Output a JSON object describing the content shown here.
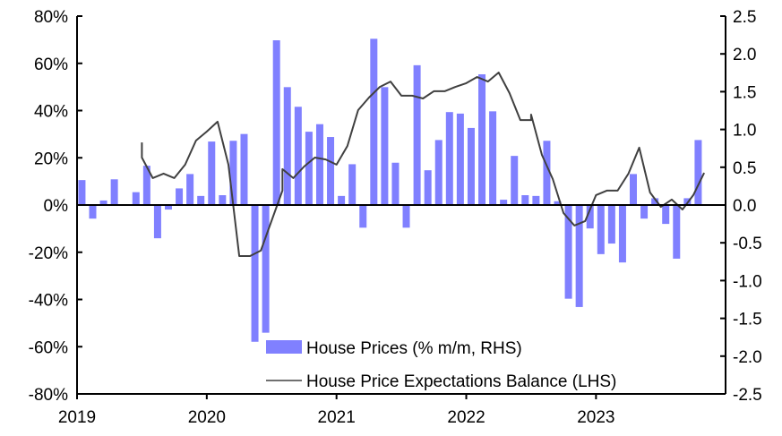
{
  "chart_data": {
    "type": "bar+line",
    "title": "",
    "x_start": "2019-01",
    "x_tick_labels": [
      "2019",
      "2020",
      "2021",
      "2022",
      "2023"
    ],
    "left_axis": {
      "label": "",
      "ylim": [
        -80,
        80
      ],
      "ticks": [
        80,
        60,
        40,
        20,
        0,
        -20,
        -40,
        -60,
        -80
      ],
      "tick_labels": [
        "80%",
        "60%",
        "40%",
        "20%",
        "0%",
        "-20%",
        "-40%",
        "-60%",
        "-80%"
      ]
    },
    "right_axis": {
      "label": "",
      "ylim": [
        -2.5,
        2.5
      ],
      "ticks": [
        2.5,
        2.0,
        1.5,
        1.0,
        0.5,
        0.0,
        -0.5,
        -1.0,
        -1.5,
        -2.0,
        -2.5
      ],
      "tick_labels": [
        "2.5",
        "2.0",
        "1.5",
        "1.0",
        "0.5",
        "0.0",
        "-0.5",
        "-1.0",
        "-1.5",
        "-2.0",
        "-2.5"
      ]
    },
    "legend_position": "bottom-center",
    "series": [
      {
        "name": "House Prices (% m/m, RHS)",
        "type": "bar",
        "axis": "right",
        "color": "#8080FF",
        "months": [
          "2019-01",
          "2019-02",
          "2019-03",
          "2019-04",
          "2019-05",
          "2019-06",
          "2019-07",
          "2019-08",
          "2019-09",
          "2019-10",
          "2019-11",
          "2019-12",
          "2020-01",
          "2020-02",
          "2020-03",
          "2020-04",
          "2020-05",
          "2020-06",
          "2020-07",
          "2020-08",
          "2020-09",
          "2020-10",
          "2020-11",
          "2020-12",
          "2021-01",
          "2021-02",
          "2021-03",
          "2021-04",
          "2021-05",
          "2021-06",
          "2021-07",
          "2021-08",
          "2021-09",
          "2021-10",
          "2021-11",
          "2021-12",
          "2022-01",
          "2022-02",
          "2022-03",
          "2022-04",
          "2022-05",
          "2022-06",
          "2022-07",
          "2022-08",
          "2022-09",
          "2022-10",
          "2022-11",
          "2022-12",
          "2023-01",
          "2023-02",
          "2023-03",
          "2023-04",
          "2023-05",
          "2023-06",
          "2023-07",
          "2023-08",
          "2023-09",
          "2023-10"
        ],
        "values": [
          0.33,
          -0.18,
          0.06,
          0.34,
          0,
          0.17,
          0.52,
          -0.44,
          -0.06,
          0.22,
          0.41,
          0.12,
          0.84,
          0.13,
          0.85,
          0.94,
          -1.81,
          -1.69,
          2.18,
          1.56,
          1.3,
          0.97,
          1.07,
          0.9,
          0.12,
          0.54,
          -0.3,
          2.2,
          1.56,
          0.56,
          -0.3,
          1.85,
          0.46,
          0.86,
          1.23,
          1.21,
          1.02,
          1.73,
          1.24,
          0.07,
          0.65,
          0.13,
          0.12,
          0.85,
          0.05,
          -1.24,
          -1.35,
          -0.31,
          -0.65,
          -0.51,
          -0.76,
          0.41,
          -0.18,
          0.09,
          -0.25,
          -0.71,
          0.09,
          0.86
        ]
      },
      {
        "name": "House Price Expectations Balance (LHS)",
        "type": "line",
        "axis": "left",
        "color": "#404040",
        "points": [
          [
            "2019-07",
            26.5
          ],
          [
            "2019-07",
            20.1
          ],
          [
            "2019-08",
            11.4
          ],
          [
            "2019-09",
            13.3
          ],
          [
            "2019-10",
            11.4
          ],
          [
            "2019-11",
            17.1
          ],
          [
            "2019-12",
            27.3
          ],
          [
            "2020-01",
            31.1
          ],
          [
            "2020-02",
            35.3
          ],
          [
            "2020-03",
            17.1
          ],
          [
            "2020-04",
            -21.6
          ],
          [
            "2020-05",
            -21.6
          ],
          [
            "2020-06",
            -19.3
          ],
          [
            "2020-08",
            6.1
          ],
          [
            "2020-08",
            15.2
          ],
          [
            "2020-09",
            11.4
          ],
          [
            "2020-10",
            16.3
          ],
          [
            "2020-11",
            20.1
          ],
          [
            "2020-12",
            19.3
          ],
          [
            "2021-01",
            17.1
          ],
          [
            "2021-02",
            25.0
          ],
          [
            "2021-03",
            40.2
          ],
          [
            "2021-04",
            45.5
          ],
          [
            "2021-05",
            50.0
          ],
          [
            "2021-06",
            52.3
          ],
          [
            "2021-07",
            46.3
          ],
          [
            "2021-08",
            46.3
          ],
          [
            "2021-09",
            45.1
          ],
          [
            "2021-10",
            48.2
          ],
          [
            "2021-11",
            48.2
          ],
          [
            "2021-12",
            50.0
          ],
          [
            "2022-01",
            51.6
          ],
          [
            "2022-02",
            54.2
          ],
          [
            "2022-03",
            52.3
          ],
          [
            "2022-04",
            56.1
          ],
          [
            "2022-05",
            47.4
          ],
          [
            "2022-06",
            36.0
          ],
          [
            "2022-07",
            36.0
          ],
          [
            "2022-07",
            38.3
          ],
          [
            "2022-08",
            21.2
          ],
          [
            "2022-09",
            11.0
          ],
          [
            "2022-10",
            -3.4
          ],
          [
            "2022-11",
            -8.7
          ],
          [
            "2022-12",
            -6.8
          ],
          [
            "2023-01",
            4.2
          ],
          [
            "2023-02",
            6.1
          ],
          [
            "2023-03",
            6.1
          ],
          [
            "2023-04",
            13.3
          ],
          [
            "2023-05",
            24.3
          ],
          [
            "2023-06",
            5.3
          ],
          [
            "2023-07",
            -0.8
          ],
          [
            "2023-08",
            2.3
          ],
          [
            "2023-09",
            -1.9
          ],
          [
            "2023-10",
            4.2
          ],
          [
            "2023-11",
            13.6
          ]
        ]
      }
    ]
  }
}
